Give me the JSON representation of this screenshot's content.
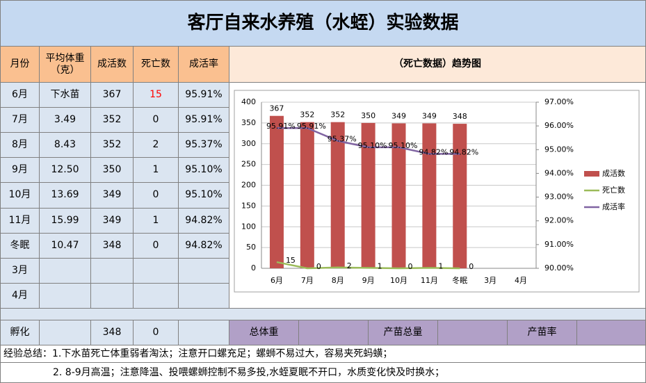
{
  "title": "客厅自来水养殖（水蛭）实验数据",
  "table": {
    "headers": [
      "月份",
      "平均体重（克）",
      "成活数",
      "死亡数",
      "成活率"
    ],
    "chart_header": "（死亡数据）趋势图",
    "rows": [
      [
        "6月",
        "下水苗",
        "367",
        "15",
        "95.91%"
      ],
      [
        "7月",
        "3.49",
        "352",
        "0",
        "95.91%"
      ],
      [
        "8月",
        "8.43",
        "352",
        "2",
        "95.37%"
      ],
      [
        "9月",
        "12.50",
        "350",
        "1",
        "95.10%"
      ],
      [
        "10月",
        "13.69",
        "349",
        "0",
        "95.10%"
      ],
      [
        "11月",
        "15.99",
        "349",
        "1",
        "94.82%"
      ],
      [
        "冬眠",
        "10.47",
        "348",
        "0",
        "94.82%"
      ],
      [
        "3月"
      ],
      [
        "4月"
      ]
    ],
    "hatch": {
      "label": "孵化",
      "count": "348",
      "deaths": "0"
    },
    "totals": [
      "总体重",
      "产苗总量",
      "产苗率"
    ],
    "summary": [
      "经验总结：1.下水苗死亡体重弱者淘汰；注意开口螺充足；螺蛳不易过大，容易夹死蚂蟥；",
      "2. 8-9月高温；注意降温、投喂螺蛳控制不易多投,水蛭夏眠不开口，水质变化快及时换水；"
    ]
  },
  "chart_data": {
    "type": "combo",
    "categories": [
      "6月",
      "7月",
      "8月",
      "9月",
      "10月",
      "11月",
      "冬眠",
      "3月",
      "4月"
    ],
    "series": [
      {
        "name": "成活数",
        "type": "bar",
        "color": "#c0504d",
        "values": [
          367,
          352,
          352,
          350,
          349,
          349,
          348,
          null,
          null
        ]
      },
      {
        "name": "死亡数",
        "type": "line",
        "color": "#9bbb59",
        "values": [
          15,
          0,
          2,
          1,
          0,
          1,
          0,
          null,
          null
        ]
      },
      {
        "name": "成活率",
        "type": "line",
        "axis": "y2",
        "color": "#8064a2",
        "values": [
          95.91,
          95.91,
          95.37,
          95.1,
          95.1,
          94.82,
          94.82,
          null,
          null
        ],
        "value_labels": [
          "95.91%",
          "95.91%",
          "95.37%",
          "95.10%",
          "95.10%",
          "94.82%",
          "94.82%",
          null,
          null
        ]
      }
    ],
    "ylim": [
      0,
      400
    ],
    "yticks": [
      0,
      50,
      100,
      150,
      200,
      250,
      300,
      350,
      400
    ],
    "y2lim": [
      90,
      97
    ],
    "y2ticks": [
      {
        "value": 90,
        "label": "90.00%"
      },
      {
        "value": 91,
        "label": "91.00%"
      },
      {
        "value": 92,
        "label": "92.00%"
      },
      {
        "value": 93,
        "label": "93.00%"
      },
      {
        "value": 94,
        "label": "94.00%"
      },
      {
        "value": 95,
        "label": "95.00%"
      },
      {
        "value": 96,
        "label": "96.00%"
      },
      {
        "value": 97,
        "label": "97.00%"
      }
    ],
    "grid": true,
    "legend": "right"
  }
}
